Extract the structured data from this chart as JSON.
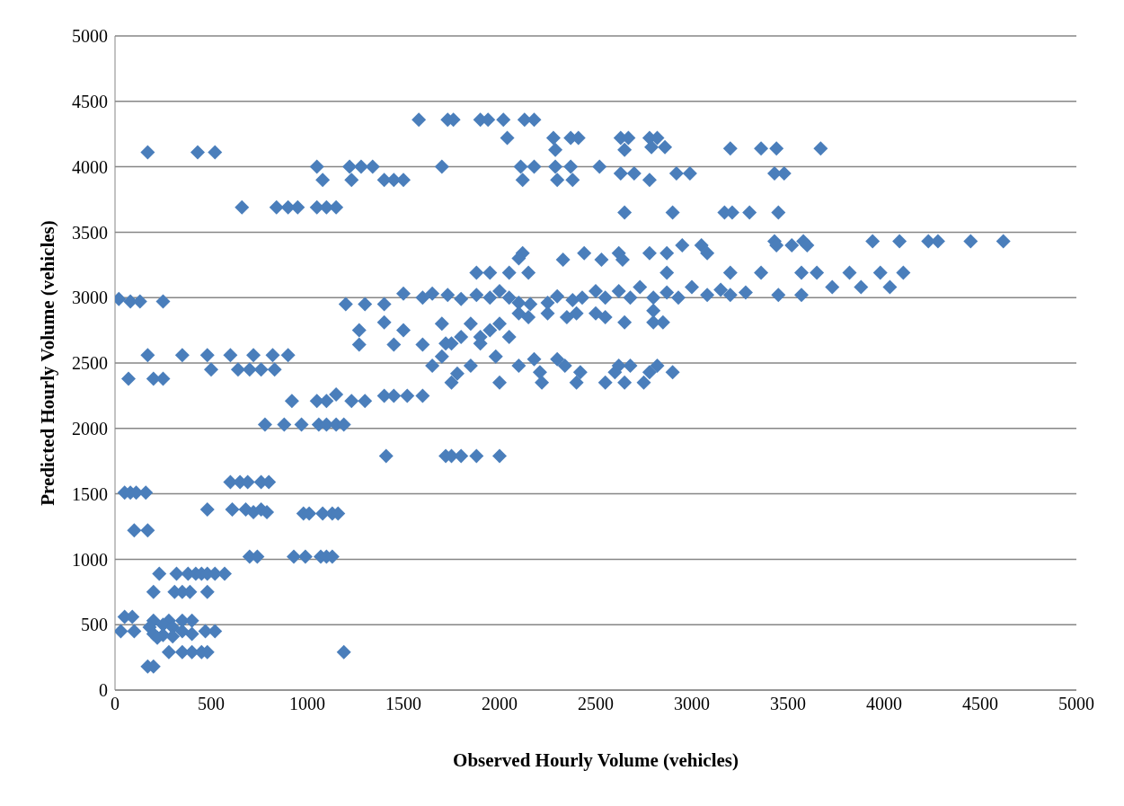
{
  "chart_data": {
    "type": "scatter",
    "xlabel": "Observed Hourly Volume (vehicles)",
    "ylabel": "Predicted Hourly Volume (vehicles)",
    "color": "#4a7ebb",
    "marker": "diamond",
    "grid": "y",
    "legend": false,
    "xlim": [
      0,
      5000
    ],
    "xticks": [
      0,
      500,
      1000,
      1500,
      2000,
      2500,
      3000,
      3500,
      4000,
      4500,
      5000
    ],
    "ylim": [
      0,
      5000
    ],
    "yticks": [
      0,
      500,
      1000,
      1500,
      2000,
      2500,
      3000,
      3500,
      4000,
      4500,
      5000
    ],
    "x": [
      20,
      80,
      130,
      250,
      50,
      80,
      110,
      160,
      100,
      170,
      70,
      200,
      250,
      170,
      350,
      480,
      600,
      720,
      820,
      900,
      500,
      640,
      700,
      760,
      830,
      170,
      430,
      520,
      660,
      840,
      900,
      950,
      1050,
      1100,
      1150,
      1050,
      1080,
      1220,
      1280,
      1340,
      1230,
      1400,
      1450,
      1500,
      1580,
      1730,
      1760,
      1900,
      1940,
      2020,
      2130,
      2180,
      2040,
      2280,
      2370,
      2410,
      2630,
      2670,
      2780,
      2820,
      2290,
      2650,
      2790,
      2860,
      3200,
      3360,
      3440,
      3670,
      1700,
      2110,
      2180,
      2290,
      2370,
      2520,
      2120,
      2300,
      2380,
      2630,
      2700,
      2780,
      2920,
      2990,
      3430,
      3480,
      2650,
      2900,
      3170,
      3210,
      3300,
      3450,
      2120,
      2620,
      2780,
      2870,
      2950,
      3050,
      3080,
      3430,
      3440,
      3520,
      3580,
      3600,
      3940,
      4080,
      4230,
      4280,
      4450,
      4620,
      2330,
      2440,
      2530,
      2640,
      2870,
      3200,
      3360,
      3570,
      3650,
      3820,
      3980,
      4100,
      3730,
      3880,
      4030,
      3450,
      3570,
      1500,
      1600,
      1650,
      1730,
      1800,
      1880,
      1950,
      2000,
      2050,
      2100,
      2160,
      2250,
      2300,
      2380,
      2430,
      2500,
      2550,
      2620,
      2680,
      2730,
      2800,
      2870,
      2930,
      3000,
      3080,
      3150,
      3200,
      3280,
      1880,
      1950,
      2050,
      2150,
      2100,
      1700,
      1750,
      1800,
      1850,
      1900,
      1950,
      2000,
      2050,
      2100,
      2150,
      2250,
      2350,
      2400,
      2500,
      2550,
      2650,
      2800,
      2850,
      2800,
      1400,
      1300,
      1200,
      1400,
      1270,
      1270,
      1450,
      1500,
      1600,
      1650,
      1700,
      1720,
      1750,
      1780,
      1850,
      1900,
      1980,
      2000,
      2100,
      2180,
      2210,
      2220,
      2300,
      2340,
      2400,
      2420,
      2550,
      2600,
      2620,
      2650,
      2680,
      2750,
      2780,
      2820,
      2900,
      920,
      1050,
      1100,
      1150,
      1230,
      1300,
      1400,
      1450,
      1520,
      1600,
      780,
      880,
      970,
      1060,
      1100,
      1150,
      1190,
      1410,
      1720,
      1750,
      1800,
      1880,
      2000,
      600,
      650,
      690,
      760,
      800,
      480,
      610,
      680,
      720,
      760,
      790,
      980,
      1010,
      1080,
      1130,
      1160,
      700,
      740,
      930,
      990,
      1070,
      1100,
      1130,
      230,
      320,
      380,
      420,
      450,
      480,
      520,
      570,
      200,
      310,
      350,
      390,
      480,
      50,
      90,
      200,
      280,
      350,
      400,
      250,
      300,
      180,
      30,
      100,
      200,
      250,
      350,
      400,
      470,
      520,
      220,
      300,
      170,
      200,
      280,
      350,
      400,
      450,
      480,
      1190
    ],
    "values": [
      2990,
      2970,
      2970,
      2970,
      1510,
      1510,
      1510,
      1510,
      1220,
      1220,
      2380,
      2380,
      2380,
      2560,
      2560,
      2560,
      2560,
      2560,
      2560,
      2560,
      2450,
      2450,
      2450,
      2450,
      2450,
      4110,
      4110,
      4110,
      3690,
      3690,
      3690,
      3690,
      3690,
      3690,
      3690,
      4000,
      3900,
      4000,
      4000,
      4000,
      3900,
      3900,
      3900,
      3900,
      4360,
      4360,
      4360,
      4360,
      4360,
      4360,
      4360,
      4360,
      4220,
      4220,
      4220,
      4220,
      4220,
      4220,
      4220,
      4220,
      4130,
      4130,
      4150,
      4150,
      4140,
      4140,
      4140,
      4140,
      4000,
      4000,
      4000,
      4000,
      4000,
      4000,
      3900,
      3900,
      3900,
      3950,
      3950,
      3900,
      3950,
      3950,
      3950,
      3950,
      3650,
      3650,
      3650,
      3650,
      3650,
      3650,
      3340,
      3340,
      3340,
      3340,
      3400,
      3400,
      3340,
      3430,
      3400,
      3400,
      3430,
      3400,
      3430,
      3430,
      3430,
      3430,
      3430,
      3430,
      3290,
      3340,
      3290,
      3290,
      3190,
      3190,
      3190,
      3190,
      3190,
      3190,
      3190,
      3190,
      3080,
      3080,
      3080,
      3020,
      3020,
      3030,
      3000,
      3030,
      3020,
      2990,
      3020,
      3000,
      3050,
      3000,
      2960,
      2950,
      2960,
      3010,
      2980,
      3000,
      3050,
      3000,
      3050,
      3000,
      3080,
      3000,
      3040,
      3000,
      3080,
      3020,
      3060,
      3020,
      3040,
      3190,
      3190,
      3190,
      3190,
      3300,
      2800,
      2650,
      2700,
      2800,
      2700,
      2750,
      2800,
      2700,
      2880,
      2850,
      2880,
      2850,
      2880,
      2880,
      2850,
      2810,
      2810,
      2810,
      2900,
      2950,
      2950,
      2950,
      2810,
      2750,
      2640,
      2640,
      2750,
      2640,
      2480,
      2550,
      2650,
      2350,
      2420,
      2480,
      2650,
      2550,
      2350,
      2480,
      2530,
      2430,
      2350,
      2530,
      2480,
      2350,
      2430,
      2350,
      2430,
      2480,
      2350,
      2480,
      2350,
      2430,
      2480,
      2430,
      2210,
      2210,
      2210,
      2260,
      2210,
      2210,
      2250,
      2250,
      2250,
      2250,
      2030,
      2030,
      2030,
      2030,
      2030,
      2030,
      2030,
      1790,
      1790,
      1790,
      1790,
      1790,
      1790,
      1590,
      1590,
      1590,
      1590,
      1590,
      1380,
      1380,
      1380,
      1360,
      1380,
      1360,
      1350,
      1350,
      1350,
      1350,
      1350,
      1020,
      1020,
      1020,
      1020,
      1020,
      1020,
      1020,
      890,
      890,
      890,
      890,
      890,
      890,
      890,
      890,
      750,
      750,
      750,
      750,
      750,
      560,
      560,
      530,
      530,
      530,
      530,
      500,
      480,
      480,
      450,
      450,
      430,
      420,
      450,
      430,
      450,
      450,
      400,
      410,
      180,
      180,
      290,
      290,
      290,
      290,
      290,
      290
    ]
  }
}
